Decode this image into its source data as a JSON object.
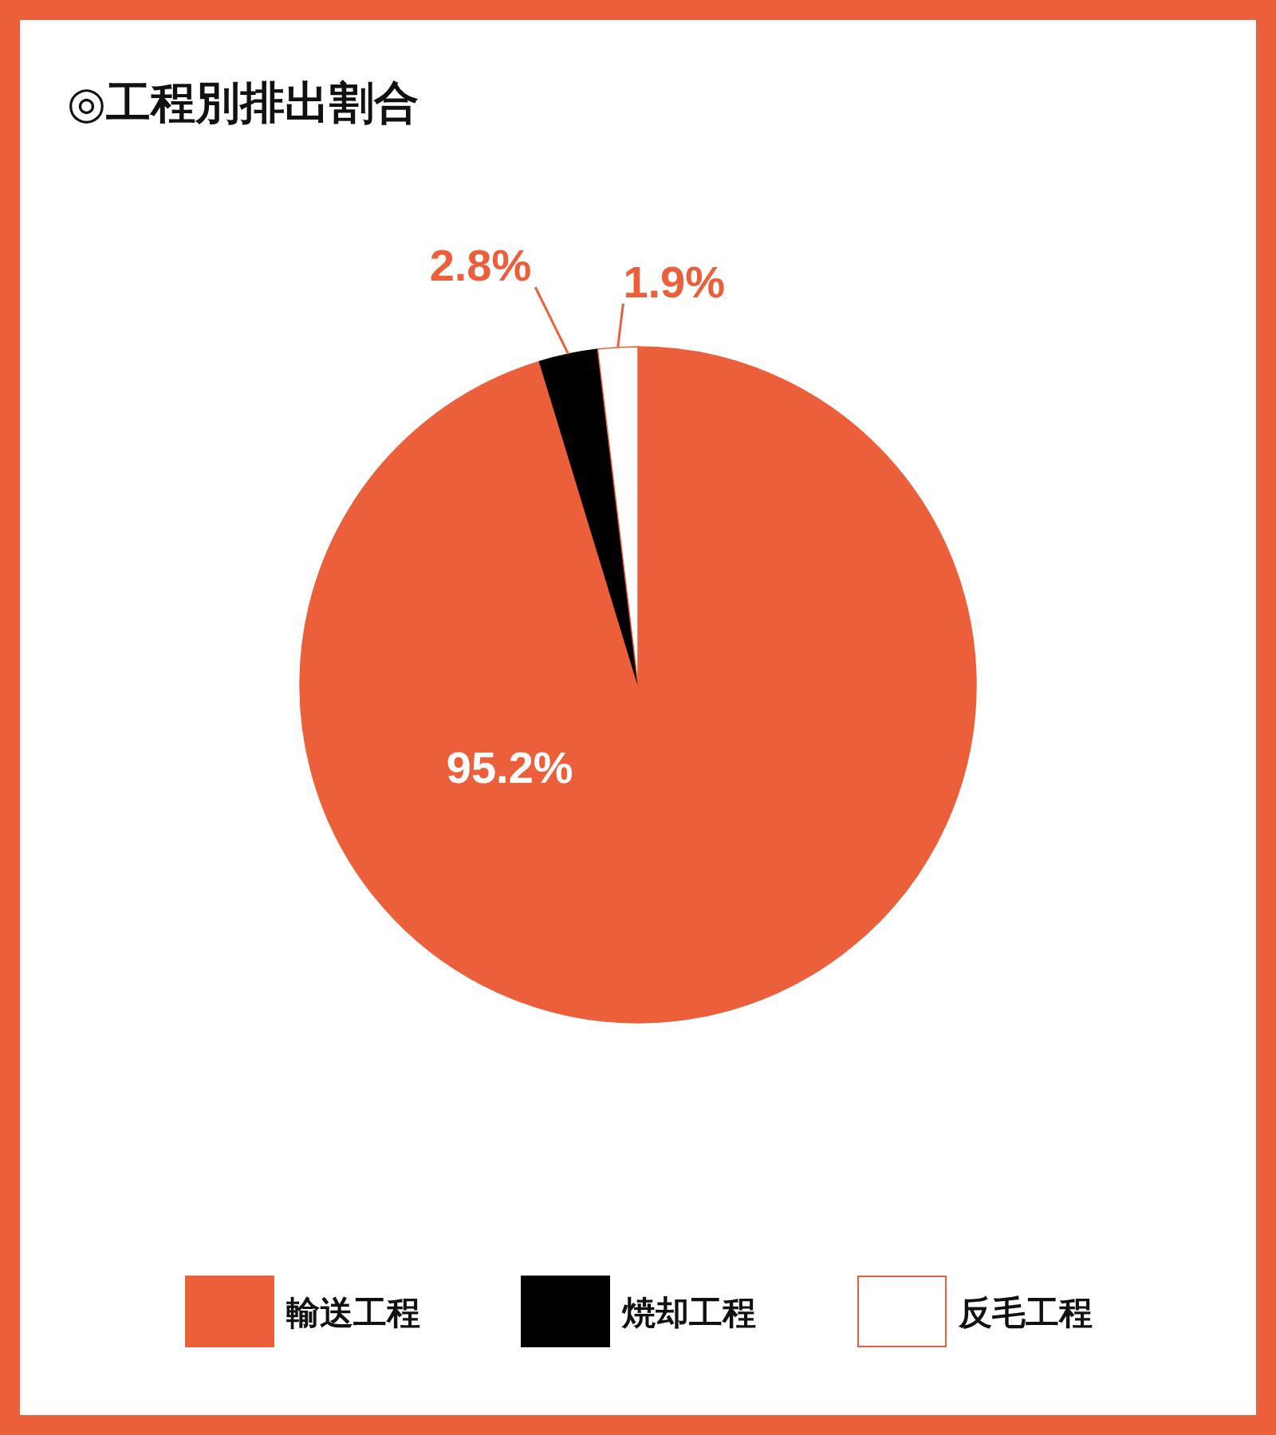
{
  "chart_data": {
    "type": "pie",
    "title": "◎工程別排出割合",
    "categories": [
      "輸送工程",
      "焼却工程",
      "反毛工程"
    ],
    "values": [
      95.2,
      2.8,
      1.9
    ],
    "colors": [
      "#eb603b",
      "#000000",
      "#ffffff"
    ],
    "value_labels": [
      "95.2%",
      "2.8%",
      "1.9%"
    ],
    "legend": "bottom"
  }
}
